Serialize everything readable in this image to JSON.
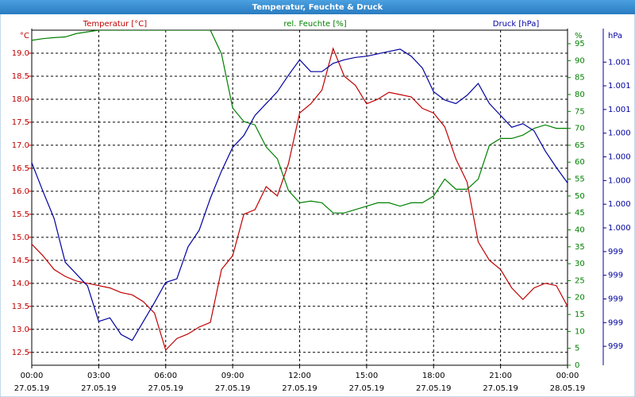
{
  "chart_data": {
    "type": "line",
    "title": "Temperatur, Feuchte & Druck",
    "x": [
      0,
      0.5,
      1,
      1.5,
      2,
      2.5,
      3,
      3.5,
      4,
      4.5,
      5,
      5.5,
      6,
      6.5,
      7,
      7.5,
      8,
      8.5,
      9,
      9.5,
      10,
      10.5,
      11,
      11.5,
      12,
      12.5,
      13,
      13.5,
      14,
      14.5,
      15,
      15.5,
      16,
      16.5,
      17,
      17.5,
      18,
      18.5,
      19,
      19.5,
      20,
      20.5,
      21,
      21.5,
      22,
      22.5,
      23,
      23.5,
      24
    ],
    "xlim": [
      0,
      24
    ],
    "xticks": [
      {
        "value": 0,
        "label": "00:00"
      },
      {
        "value": 3,
        "label": "03:00"
      },
      {
        "value": 6,
        "label": "06:00"
      },
      {
        "value": 9,
        "label": "09:00"
      },
      {
        "value": 12,
        "label": "12:00"
      },
      {
        "value": 15,
        "label": "15:00"
      },
      {
        "value": 18,
        "label": "18:00"
      },
      {
        "value": 21,
        "label": "21:00"
      },
      {
        "value": 24,
        "label": "00:00"
      }
    ],
    "xtick_dates": [
      "27.05.19",
      "27.05.19",
      "27.05.19",
      "27.05.19",
      "27.05.19",
      "27.05.19",
      "27.05.19",
      "27.05.19",
      "28.05.19"
    ],
    "axis_units": {
      "y": "°C",
      "y2": "%",
      "y3": "hPa"
    },
    "ylim": [
      12.22,
      19.5
    ],
    "yticks": [
      12.5,
      {
        "value": 13.0,
        "label": "13.0"
      },
      13.5,
      {
        "value": 14.0,
        "label": "14.0"
      },
      14.5,
      {
        "value": 15.0,
        "label": "15.0"
      },
      15.5,
      {
        "value": 16.0,
        "label": "16.0"
      },
      16.5,
      {
        "value": 17.0,
        "label": "17.0"
      },
      17.5,
      {
        "value": 18.0,
        "label": "18.0"
      },
      18.5,
      {
        "value": 19.0,
        "label": "19.0"
      }
    ],
    "y2lim": [
      0,
      99
    ],
    "y2ticks": [
      0,
      5,
      10,
      15,
      20,
      25,
      30,
      35,
      40,
      45,
      50,
      55,
      60,
      65,
      70,
      75,
      80,
      85,
      90,
      95
    ],
    "y3lim": [
      998.44,
      1001.27
    ],
    "y3ticks": [
      {
        "value": 998.6,
        "label": "999"
      },
      {
        "value": 998.8,
        "label": "999"
      },
      {
        "value": 999.0,
        "label": "999"
      },
      {
        "value": 999.2,
        "label": "999"
      },
      {
        "value": 999.4,
        "label": "999"
      },
      {
        "value": 999.6,
        "label": "1.000"
      },
      {
        "value": 999.8,
        "label": "1.000"
      },
      {
        "value": 1000.0,
        "label": "1.000"
      },
      {
        "value": 1000.2,
        "label": "1.000"
      },
      {
        "value": 1000.4,
        "label": "1.000"
      },
      {
        "value": 1000.6,
        "label": "1.001"
      },
      {
        "value": 1000.8,
        "label": "1.001"
      },
      {
        "value": 1001.0,
        "label": "1.001"
      }
    ],
    "grid": true,
    "series": [
      {
        "name": "Temperatur [°C]",
        "color": "#c00000",
        "axis": "y",
        "values": [
          14.85,
          14.6,
          14.3,
          14.15,
          14.05,
          14.0,
          13.95,
          13.9,
          13.8,
          13.75,
          13.6,
          13.35,
          12.55,
          12.8,
          12.9,
          13.05,
          13.15,
          14.3,
          14.6,
          15.5,
          15.6,
          16.1,
          15.9,
          16.6,
          17.7,
          17.9,
          18.2,
          19.1,
          18.5,
          18.3,
          17.9,
          18.0,
          18.15,
          18.1,
          18.05,
          17.8,
          17.7,
          17.4,
          16.7,
          16.2,
          14.9,
          14.5,
          14.3,
          13.9,
          13.65,
          13.9,
          14.0,
          13.95,
          13.5
        ]
      },
      {
        "name": "rel. Feuchte [%]",
        "color": "#008000",
        "axis": "y2",
        "values": [
          96,
          96.5,
          96.8,
          97,
          98,
          98.5,
          99,
          99,
          99,
          99,
          99,
          99,
          99,
          99,
          99,
          99,
          99,
          92,
          76,
          72,
          71,
          64.5,
          61,
          51.6,
          48,
          48.5,
          48,
          45,
          45,
          46,
          47,
          48,
          48,
          47,
          48,
          48,
          50,
          55,
          52,
          52,
          55,
          65,
          67,
          67,
          68,
          70,
          71,
          70,
          70
        ]
      },
      {
        "name": "Druck [hPa]",
        "color": "#0000a0",
        "axis": "y3",
        "values": [
          1000.15,
          999.91,
          999.68,
          999.31,
          999.21,
          999.11,
          998.81,
          998.84,
          998.7,
          998.65,
          998.81,
          998.97,
          999.14,
          999.17,
          999.44,
          999.58,
          999.85,
          1000.08,
          1000.28,
          1000.38,
          1000.55,
          1000.65,
          1000.75,
          1000.89,
          1001.02,
          1000.92,
          1000.92,
          1000.99,
          1001.02,
          1001.04,
          1001.05,
          1001.07,
          1001.09,
          1001.11,
          1001.05,
          1000.95,
          1000.75,
          1000.68,
          1000.65,
          1000.72,
          1000.82,
          1000.65,
          1000.55,
          1000.45,
          1000.48,
          1000.42,
          1000.25,
          1000.11,
          999.98
        ]
      }
    ]
  }
}
